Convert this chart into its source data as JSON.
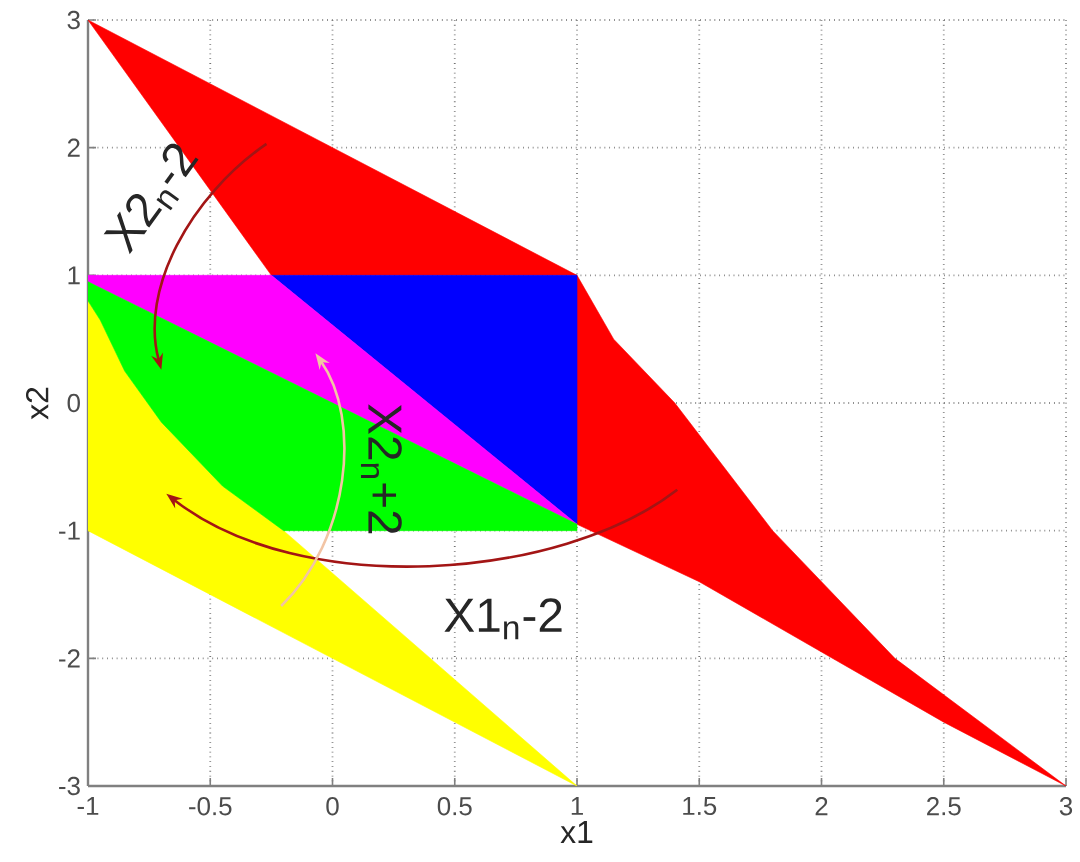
{
  "chart_data": {
    "type": "area",
    "xlabel": "x1",
    "ylabel": "x2",
    "xlim": [
      -1,
      3
    ],
    "ylim": [
      -3,
      3
    ],
    "xticks": [
      -1,
      -0.5,
      0,
      0.5,
      1,
      1.5,
      2,
      2.5,
      3
    ],
    "yticks": [
      -3,
      -2,
      -1,
      0,
      1,
      2,
      3
    ],
    "grid": true,
    "series": [
      {
        "color": "#ff0000",
        "x": [
          -1,
          1,
          1.15,
          1.4,
          1.8,
          2.3,
          3,
          2.5,
          2,
          1.5,
          1,
          1,
          -0.25
        ],
        "values": [
          3,
          1,
          0.5,
          0,
          -1,
          -2,
          -3,
          -2.5,
          -1.95,
          -1.4,
          -0.95,
          1,
          1
        ]
      },
      {
        "color": "#0000ff",
        "x": [
          -0.25,
          1,
          1
        ],
        "values": [
          1,
          1,
          -0.95
        ]
      },
      {
        "color": "#ff00ff",
        "x": [
          -1,
          -0.25,
          1,
          -1
        ],
        "values": [
          1,
          1,
          -0.95,
          0.95
        ]
      },
      {
        "color": "#ffff00",
        "x": [
          -1,
          -0.95,
          -0.85,
          -0.7,
          -0.45,
          -0.2,
          1,
          -1
        ],
        "values": [
          0.8,
          0.65,
          0.25,
          -0.15,
          -0.65,
          -1,
          -3,
          -1
        ]
      },
      {
        "color": "#00ff00",
        "x": [
          -1,
          1,
          1,
          -0.2,
          -0.45,
          -0.7,
          -0.85,
          -0.95,
          -1
        ],
        "values": [
          0.95,
          -0.95,
          -1,
          -1,
          -0.65,
          -0.15,
          0.25,
          0.65,
          0.8
        ]
      }
    ],
    "annotations": [
      "X2$_{n}$-2",
      "X2$_{n}$+2",
      "X1$_{n}$-2"
    ]
  }
}
